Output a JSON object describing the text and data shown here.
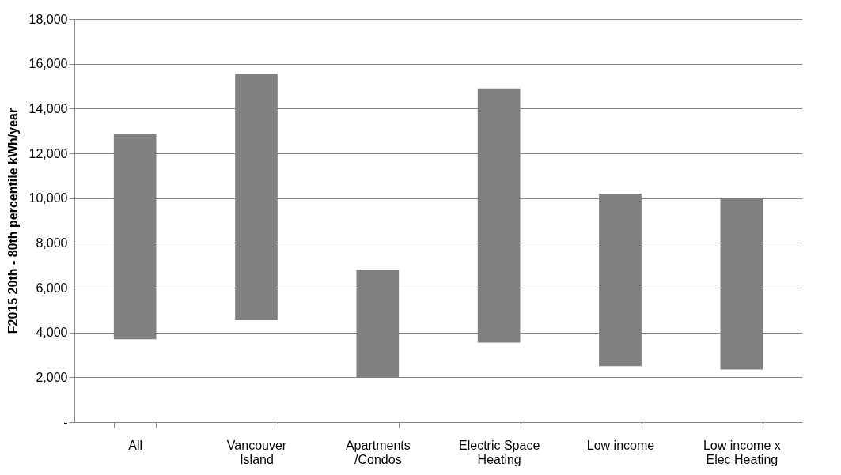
{
  "chart_data": {
    "type": "bar",
    "ylabel": "F2015 20th - 80th percentile kWh/year",
    "categories": [
      "All",
      "Vancouver\nIsland",
      "Apartments\n/Condos",
      "Electric Space\nHeating",
      "Low income",
      "Low income x\nElec Heating"
    ],
    "base": [
      3700,
      4550,
      2000,
      3550,
      2500,
      2350
    ],
    "values": [
      9150,
      11000,
      4800,
      11350,
      7700,
      7650
    ],
    "color": "#808080",
    "ylim": [
      0,
      18000
    ],
    "yticks": [
      {
        "value": 0,
        "label": "-"
      },
      {
        "value": 2000,
        "label": "2,000"
      },
      {
        "value": 4000,
        "label": "4,000"
      },
      {
        "value": 6000,
        "label": "6,000"
      },
      {
        "value": 8000,
        "label": "8,000"
      },
      {
        "value": 10000,
        "label": "10,000"
      },
      {
        "value": 12000,
        "label": "12,000"
      },
      {
        "value": 14000,
        "label": "14,000"
      },
      {
        "value": 16000,
        "label": "16,000"
      },
      {
        "value": 18000,
        "label": "18,000"
      }
    ],
    "grid": "y"
  }
}
